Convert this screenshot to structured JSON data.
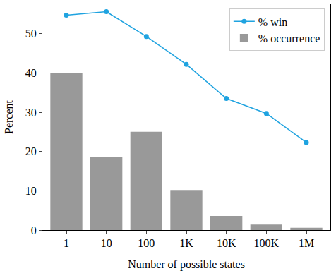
{
  "chart_data": {
    "type": "bar",
    "x_label": "Number of possible states",
    "y_label": "Percent",
    "categories": [
      "1",
      "10",
      "100",
      "1K",
      "10K",
      "100K",
      "1M"
    ],
    "series": [
      {
        "name": "% win",
        "type": "line",
        "color": "#1fa3e0",
        "marker": "circle",
        "values": [
          54.7,
          55.6,
          49.3,
          42.2,
          33.5,
          29.7,
          22.3
        ]
      },
      {
        "name": "% occurrence",
        "type": "bar",
        "color": "#999999",
        "values": [
          40.0,
          18.6,
          25.0,
          10.2,
          3.6,
          1.4,
          0.6
        ]
      }
    ],
    "ylim": [
      0,
      57.5
    ],
    "yticks": [
      0,
      10,
      20,
      30,
      40,
      50
    ],
    "grid": false,
    "legend": "upper right"
  }
}
